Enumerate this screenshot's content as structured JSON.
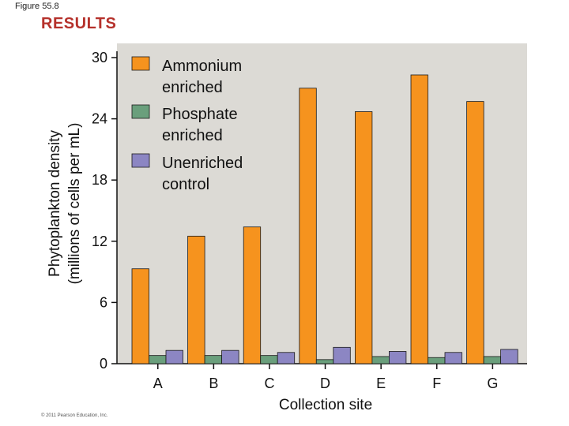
{
  "figure_label": "Figure 55.8",
  "section_title": "RESULTS",
  "copyright": "© 2011 Pearson Education, Inc.",
  "colors": {
    "ammonium": "#f6931e",
    "phosphate": "#6a9f7c",
    "control": "#8c86c3",
    "plot_bg": "#dcdad5",
    "results_title": "#b5312b"
  },
  "chart_data": {
    "type": "bar",
    "title": "",
    "xlabel": "Collection site",
    "ylabel_lines": [
      "Phytoplankton density",
      "(millions of cells per mL)"
    ],
    "ylim": [
      0,
      30
    ],
    "yticks": [
      0,
      6,
      12,
      18,
      24,
      30
    ],
    "categories": [
      "A",
      "B",
      "C",
      "D",
      "E",
      "F",
      "G"
    ],
    "series": [
      {
        "name": "Ammonium enriched",
        "legend_lines": [
          "Ammonium",
          "enriched"
        ],
        "color_key": "ammonium",
        "values": [
          9.3,
          12.5,
          13.4,
          27.0,
          24.7,
          28.3,
          25.7
        ]
      },
      {
        "name": "Phosphate enriched",
        "legend_lines": [
          "Phosphate",
          "enriched"
        ],
        "color_key": "phosphate",
        "values": [
          0.8,
          0.8,
          0.8,
          0.4,
          0.7,
          0.6,
          0.7
        ]
      },
      {
        "name": "Unenriched control",
        "legend_lines": [
          "Unenriched",
          "control"
        ],
        "color_key": "control",
        "values": [
          1.3,
          1.3,
          1.1,
          1.6,
          1.2,
          1.1,
          1.4
        ]
      }
    ],
    "legend_position": "top-left",
    "grid": false
  }
}
